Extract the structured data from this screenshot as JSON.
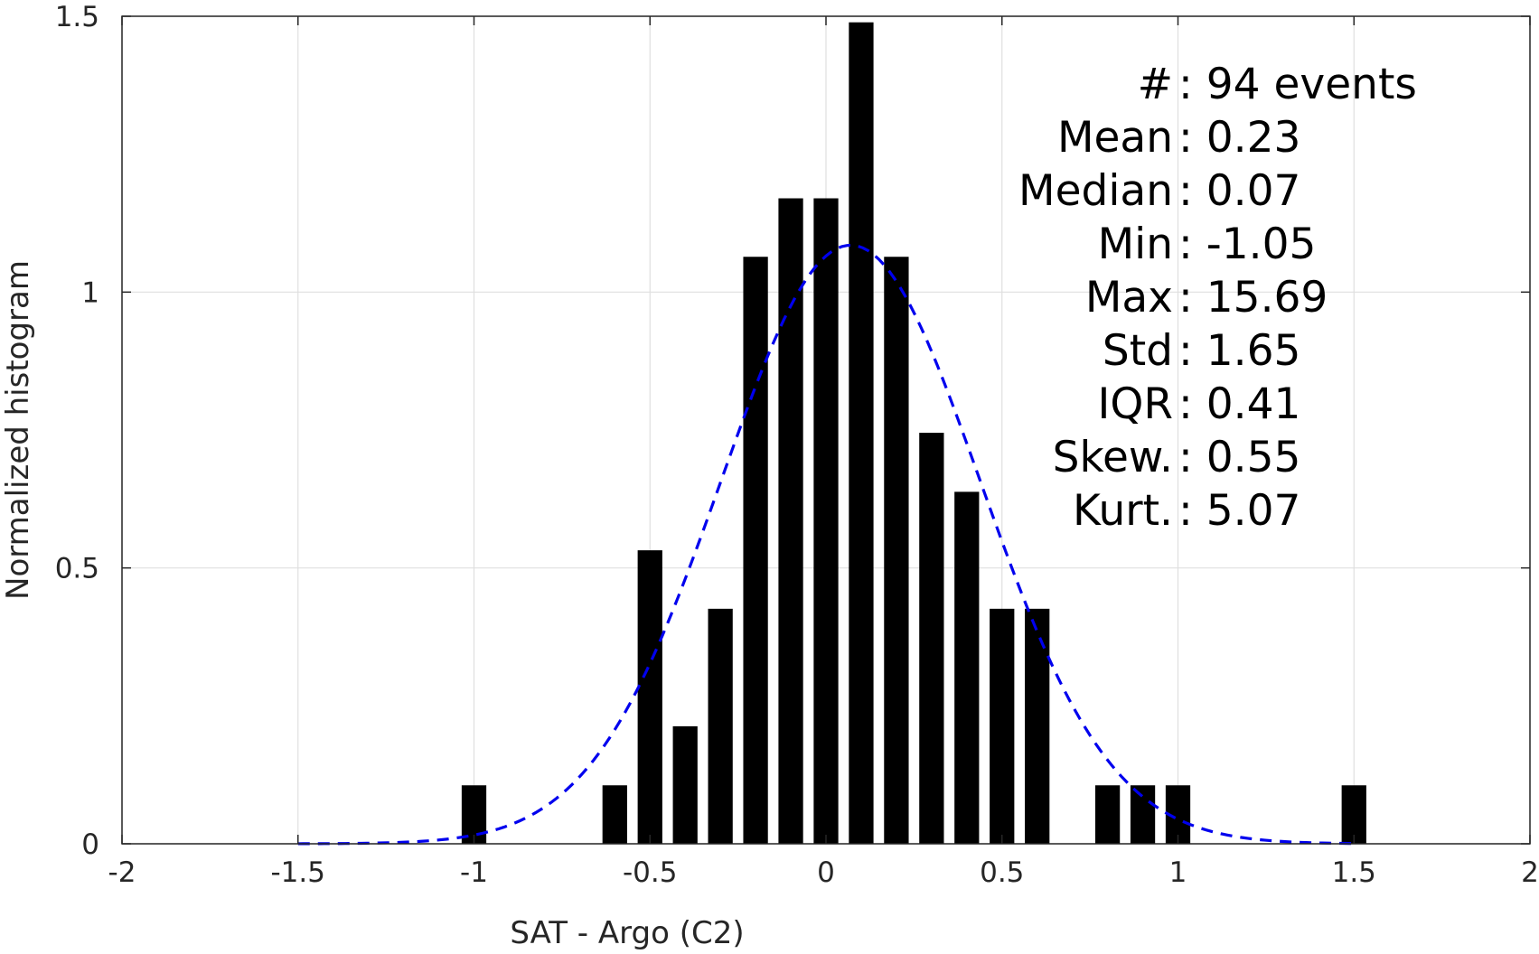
{
  "chart_data": {
    "type": "bar",
    "xlabel": "SAT - Argo (C2)",
    "ylabel": "Normalized histogram",
    "xlim": [
      -2,
      2
    ],
    "ylim": [
      0,
      1.5
    ],
    "xticks": [
      -2,
      -1.5,
      -1,
      -0.5,
      0,
      0.5,
      1,
      1.5,
      2
    ],
    "xtick_labels": [
      "-2",
      "-1.5",
      "-1",
      "-0.5",
      "0",
      "0.5",
      "1",
      "1.5",
      "2"
    ],
    "yticks": [
      0,
      0.5,
      1,
      1.5
    ],
    "ytick_labels": [
      "0",
      "0.5",
      "1",
      "1.5"
    ],
    "grid": true,
    "bar_width": 0.07,
    "bar_color": "#000000",
    "bars": [
      {
        "x": -1.0,
        "value": 0.106
      },
      {
        "x": -0.6,
        "value": 0.106
      },
      {
        "x": -0.5,
        "value": 0.532
      },
      {
        "x": -0.4,
        "value": 0.213
      },
      {
        "x": -0.3,
        "value": 0.426
      },
      {
        "x": -0.2,
        "value": 1.064
      },
      {
        "x": -0.1,
        "value": 1.17
      },
      {
        "x": 0.0,
        "value": 1.17
      },
      {
        "x": 0.1,
        "value": 1.489
      },
      {
        "x": 0.2,
        "value": 1.064
      },
      {
        "x": 0.3,
        "value": 0.745
      },
      {
        "x": 0.4,
        "value": 0.638
      },
      {
        "x": 0.5,
        "value": 0.426
      },
      {
        "x": 0.6,
        "value": 0.426
      },
      {
        "x": 0.8,
        "value": 0.106
      },
      {
        "x": 0.9,
        "value": 0.106
      },
      {
        "x": 1.0,
        "value": 0.106
      },
      {
        "x": 1.5,
        "value": 0.106
      }
    ],
    "fit_curve": {
      "style": "dashed",
      "color": "#0000ee",
      "mean": 0.07,
      "std": 0.368,
      "peak": 1.085,
      "x_range": [
        -1.5,
        1.5
      ]
    },
    "stats_box": [
      {
        "key": "#",
        "sep": " : ",
        "value": "94 events"
      },
      {
        "key": "Mean",
        "sep": " : ",
        "value": "0.23"
      },
      {
        "key": "Median",
        "sep": " : ",
        "value": "0.07"
      },
      {
        "key": "Min",
        "sep": " : ",
        "value": "-1.05"
      },
      {
        "key": "Max",
        "sep": " : ",
        "value": "15.69"
      },
      {
        "key": "Std",
        "sep": " : ",
        "value": "1.65"
      },
      {
        "key": "IQR",
        "sep": " : ",
        "value": "0.41"
      },
      {
        "key": "Skew.",
        "sep": " : ",
        "value": "0.55"
      },
      {
        "key": "Kurt.",
        "sep": " : ",
        "value": "5.07"
      }
    ]
  }
}
